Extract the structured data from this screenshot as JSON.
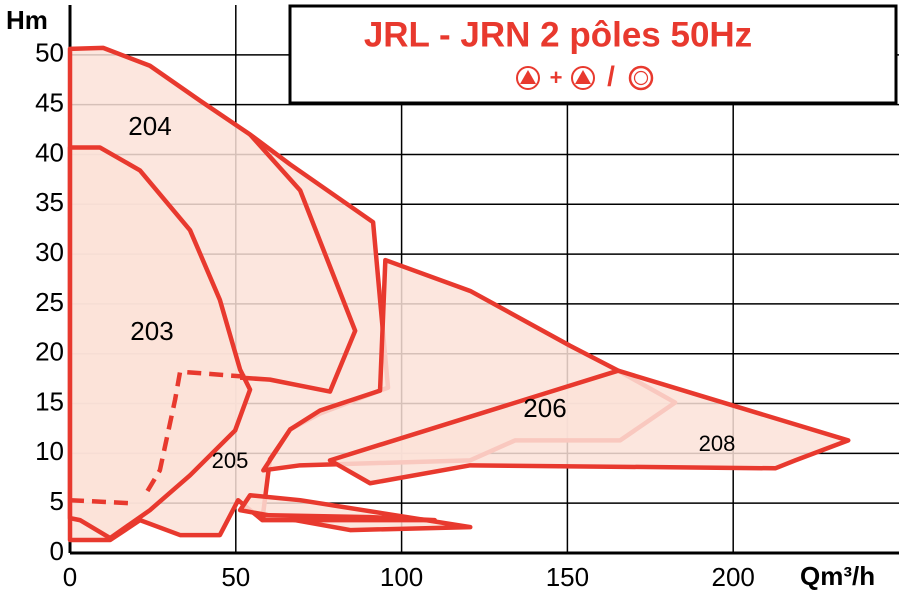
{
  "chart_data": {
    "type": "region",
    "title": "JRL - JRN 2 pôles 50Hz",
    "subtitle_parts": [
      "+",
      "/"
    ],
    "x_label": "Qm³/h",
    "y_label": "Hm",
    "xlim": [
      0,
      250
    ],
    "ylim": [
      0,
      55
    ],
    "xticks": [
      0,
      50,
      100,
      150,
      200
    ],
    "yticks": [
      0,
      5,
      10,
      15,
      20,
      25,
      30,
      35,
      40,
      45,
      50
    ],
    "grid": true,
    "stroke_color": "#e8392e",
    "fill_color": "#fbe2d8",
    "series": [
      {
        "name": "204",
        "closed": true,
        "x": [
          0,
          10,
          24.1,
          39.2,
          54.3,
          66.4,
          91.4,
          95.9,
          75.4,
          66.4,
          60.3,
          58,
          50.7,
          45.2,
          33.2,
          21.1,
          12.1,
          0
        ],
        "y": [
          50.6,
          50.7,
          48.9,
          45.4,
          42,
          39,
          33.2,
          16.6,
          14,
          12.4,
          9.4,
          3.3,
          5.3,
          1.8,
          1.8,
          3.3,
          1.3,
          1.3
        ]
      },
      {
        "name": "206",
        "closed": true,
        "x": [
          58.3,
          66.4,
          75.4,
          93.5,
          95.1,
          120.7,
          150.8,
          165.3,
          182.5,
          165.9,
          134.2,
          120.7,
          69.4
        ],
        "y": [
          8.3,
          12.4,
          14.3,
          16.3,
          29.4,
          26.3,
          20.8,
          18.3,
          15.1,
          11.3,
          11.3,
          9.3,
          8.8
        ]
      },
      {
        "name": "208",
        "closed": true,
        "x": [
          165.3,
          190,
          234.7,
          218.7,
          212.7,
          120.7,
          90.5,
          78.4
        ],
        "y": [
          18.3,
          15.8,
          11.3,
          9.3,
          8.5,
          8.8,
          7,
          9.3
        ]
      },
      {
        "name": "205",
        "closed": true,
        "x": [
          54.3,
          69.4,
          120.7,
          84.5,
          51.3
        ],
        "y": [
          5.8,
          5.3,
          2.6,
          2.3,
          4.3
        ]
      },
      {
        "closed": true,
        "x": [
          58.3,
          90.5,
          110,
          58.3
        ],
        "y": [
          3.8,
          3.6,
          3.3,
          3.3
        ]
      },
      {
        "name": "203",
        "closed": true,
        "x": [
          0,
          9,
          21.1,
          36.2,
          45.2,
          51.3,
          54.3,
          49.8,
          36.2,
          24.1,
          12.1,
          3,
          0
        ],
        "y": [
          40.7,
          40.7,
          38.4,
          32.4,
          25.4,
          18.4,
          16.4,
          12.3,
          7.8,
          4.3,
          1.5,
          3.3,
          3.5
        ]
      },
      {
        "closed": false,
        "x": [
          54.3,
          69.4,
          86,
          78.4,
          60.3,
          51.3
        ],
        "y": [
          42,
          36.4,
          22.3,
          16.2,
          17.4,
          17.6
        ]
      },
      {
        "closed": false,
        "dashed": true,
        "x": [
          52.8,
          33.2,
          31.7,
          27.1,
          22.6
        ],
        "y": [
          17.7,
          18.2,
          15.4,
          8.3,
          5.8
        ]
      },
      {
        "closed": false,
        "dashed": true,
        "x": [
          0,
          18.1
        ],
        "y": [
          5.3,
          5
        ]
      }
    ]
  }
}
